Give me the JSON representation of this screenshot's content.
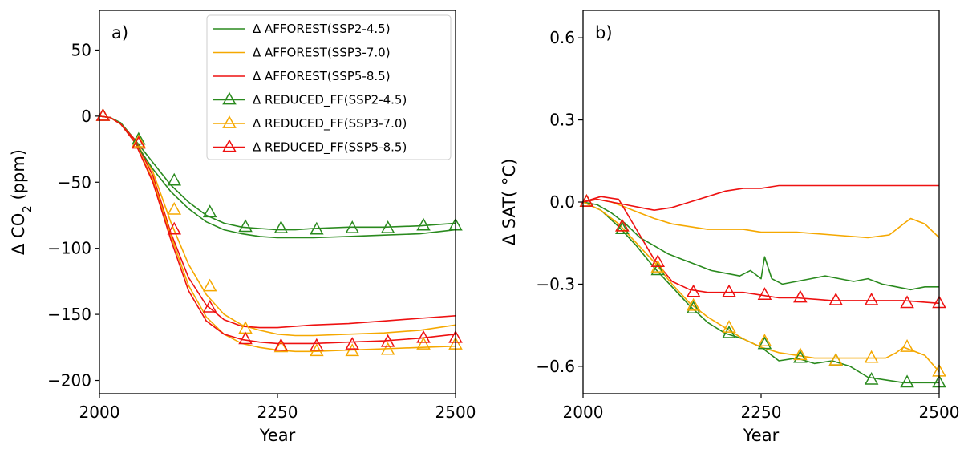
{
  "colors": {
    "SSP2-4.5": "#2a8a1e",
    "SSP3-7.0": "#f5a800",
    "SSP5-8.5": "#ee1111"
  },
  "legend": [
    {
      "label": "Δ AFFOREST(SSP2-4.5)",
      "scenario": "SSP2-4.5",
      "marker": false
    },
    {
      "label": "Δ AFFOREST(SSP3-7.0)",
      "scenario": "SSP3-7.0",
      "marker": false
    },
    {
      "label": "Δ AFFOREST(SSP5-8.5)",
      "scenario": "SSP5-8.5",
      "marker": false
    },
    {
      "label": "Δ REDUCED_FF(SSP2-4.5)",
      "scenario": "SSP2-4.5",
      "marker": true
    },
    {
      "label": "Δ REDUCED_FF(SSP3-7.0)",
      "scenario": "SSP3-7.0",
      "marker": true
    },
    {
      "label": "Δ REDUCED_FF(SSP5-8.5)",
      "scenario": "SSP5-8.5",
      "marker": true
    }
  ],
  "chart_data": [
    {
      "id": "a",
      "type": "line",
      "panel_label": "a)",
      "xlabel": "Year",
      "ylabel_parts": [
        "Δ CO",
        "2",
        " (ppm)"
      ],
      "xlim": [
        2000,
        2500
      ],
      "ylim": [
        -210,
        80
      ],
      "xticks": [
        2000,
        2250,
        2500
      ],
      "yticks": [
        -200,
        -150,
        -100,
        -50,
        0,
        50
      ],
      "ytick_labels": [
        "−200",
        "−150",
        "−100",
        "−50",
        "0",
        "50"
      ],
      "legend_position": "top-right",
      "grid": false,
      "series": [
        {
          "name": "Δ AFFOREST(SSP2-4.5)",
          "scenario": "SSP2-4.5",
          "marker": false,
          "x": [
            2000,
            2015,
            2030,
            2050,
            2075,
            2100,
            2125,
            2150,
            2175,
            2200,
            2225,
            2250,
            2275,
            2300,
            2350,
            2400,
            2450,
            2500
          ],
          "y": [
            0,
            -1,
            -5,
            -18,
            -35,
            -52,
            -65,
            -75,
            -81,
            -84,
            -85,
            -86,
            -86,
            -85,
            -84,
            -84,
            -83,
            -81
          ]
        },
        {
          "name": "Δ AFFOREST(SSP3-7.0)",
          "scenario": "SSP3-7.0",
          "marker": false,
          "x": [
            2000,
            2015,
            2030,
            2050,
            2075,
            2100,
            2125,
            2150,
            2175,
            2200,
            2225,
            2250,
            2275,
            2300,
            2350,
            2400,
            2450,
            2500
          ],
          "y": [
            0,
            -1,
            -6,
            -18,
            -42,
            -80,
            -112,
            -135,
            -150,
            -158,
            -162,
            -165,
            -166,
            -166,
            -165,
            -164,
            -162,
            -158
          ]
        },
        {
          "name": "Δ AFFOREST(SSP5-8.5)",
          "scenario": "SSP5-8.5",
          "marker": false,
          "x": [
            2000,
            2015,
            2030,
            2050,
            2075,
            2100,
            2125,
            2150,
            2175,
            2200,
            2225,
            2250,
            2275,
            2300,
            2350,
            2400,
            2450,
            2500
          ],
          "y": [
            0,
            -1,
            -6,
            -18,
            -45,
            -88,
            -122,
            -143,
            -154,
            -159,
            -160,
            -160,
            -159,
            -158,
            -157,
            -155,
            -153,
            -151
          ]
        },
        {
          "name": "Δ REDUCED_FF(SSP2-4.5)",
          "scenario": "SSP2-4.5",
          "marker": true,
          "x": [
            2000,
            2015,
            2030,
            2050,
            2075,
            2100,
            2125,
            2150,
            2175,
            2200,
            2225,
            2250,
            2275,
            2300,
            2350,
            2400,
            2450,
            2500
          ],
          "y": [
            0,
            -1,
            -6,
            -20,
            -40,
            -57,
            -70,
            -80,
            -86,
            -89,
            -91,
            -92,
            -92,
            -92,
            -91,
            -90,
            -89,
            -86
          ],
          "marker_x": [
            2005,
            2055,
            2105,
            2155,
            2205,
            2255,
            2305,
            2355,
            2405,
            2455,
            2500
          ],
          "marker_y": [
            0,
            -18,
            -49,
            -73,
            -84,
            -85,
            -86,
            -85,
            -85,
            -83,
            -83
          ]
        },
        {
          "name": "Δ REDUCED_FF(SSP3-7.0)",
          "scenario": "SSP3-7.0",
          "marker": true,
          "x": [
            2000,
            2015,
            2030,
            2050,
            2075,
            2100,
            2125,
            2150,
            2175,
            2200,
            2225,
            2250,
            2275,
            2300,
            2350,
            2400,
            2450,
            2500
          ],
          "y": [
            0,
            -1,
            -6,
            -20,
            -48,
            -90,
            -128,
            -152,
            -165,
            -172,
            -175,
            -177,
            -178,
            -178,
            -177,
            -176,
            -175,
            -174
          ],
          "marker_x": [
            2005,
            2055,
            2105,
            2155,
            2205,
            2255,
            2305,
            2355,
            2405,
            2455,
            2500
          ],
          "marker_y": [
            0,
            -20,
            -71,
            -129,
            -161,
            -175,
            -178,
            -178,
            -177,
            -173,
            -173
          ]
        },
        {
          "name": "Δ REDUCED_FF(SSP5-8.5)",
          "scenario": "SSP5-8.5",
          "marker": true,
          "x": [
            2000,
            2015,
            2030,
            2050,
            2075,
            2100,
            2125,
            2150,
            2175,
            2200,
            2225,
            2250,
            2275,
            2300,
            2350,
            2400,
            2450,
            2500
          ],
          "y": [
            0,
            -1,
            -6,
            -20,
            -50,
            -93,
            -132,
            -155,
            -165,
            -169,
            -171,
            -172,
            -172,
            -172,
            -171,
            -170,
            -168,
            -165
          ],
          "marker_x": [
            2005,
            2055,
            2105,
            2155,
            2205,
            2255,
            2305,
            2355,
            2405,
            2455,
            2500
          ],
          "marker_y": [
            0,
            -21,
            -86,
            -145,
            -169,
            -174,
            -174,
            -173,
            -171,
            -168,
            -168
          ]
        }
      ]
    },
    {
      "id": "b",
      "type": "line",
      "panel_label": "b)",
      "xlabel": "Year",
      "ylabel_parts": [
        "Δ SAT( °C)"
      ],
      "xlim": [
        2000,
        2500
      ],
      "ylim": [
        -0.7,
        0.7
      ],
      "xticks": [
        2000,
        2250,
        2500
      ],
      "yticks": [
        -0.6,
        -0.3,
        0.0,
        0.3,
        0.6
      ],
      "ytick_labels": [
        "−0.6",
        "−0.3",
        "0.0",
        "0.3",
        "0.6"
      ],
      "grid": false,
      "series": [
        {
          "name": "Δ AFFOREST(SSP2-4.5)",
          "scenario": "SSP2-4.5",
          "marker": false,
          "x": [
            2000,
            2020,
            2040,
            2060,
            2080,
            2100,
            2120,
            2140,
            2160,
            2180,
            2200,
            2220,
            2235,
            2250,
            2255,
            2265,
            2280,
            2300,
            2320,
            2340,
            2360,
            2380,
            2400,
            2420,
            2440,
            2460,
            2480,
            2500
          ],
          "y": [
            0.0,
            -0.01,
            -0.04,
            -0.08,
            -0.13,
            -0.16,
            -0.19,
            -0.21,
            -0.23,
            -0.25,
            -0.26,
            -0.27,
            -0.25,
            -0.28,
            -0.2,
            -0.28,
            -0.3,
            -0.29,
            -0.28,
            -0.27,
            -0.28,
            -0.29,
            -0.28,
            -0.3,
            -0.31,
            -0.32,
            -0.31,
            -0.31
          ]
        },
        {
          "name": "Δ AFFOREST(SSP3-7.0)",
          "scenario": "SSP3-7.0",
          "marker": false,
          "x": [
            2000,
            2020,
            2040,
            2060,
            2080,
            2100,
            2125,
            2150,
            2175,
            2200,
            2225,
            2250,
            2275,
            2300,
            2350,
            2400,
            2430,
            2450,
            2460,
            2480,
            2500
          ],
          "y": [
            0.0,
            0.01,
            0.0,
            -0.02,
            -0.04,
            -0.06,
            -0.08,
            -0.09,
            -0.1,
            -0.1,
            -0.1,
            -0.11,
            -0.11,
            -0.11,
            -0.12,
            -0.13,
            -0.12,
            -0.08,
            -0.06,
            -0.08,
            -0.13
          ]
        },
        {
          "name": "Δ AFFOREST(SSP5-8.5)",
          "scenario": "SSP5-8.5",
          "marker": false,
          "x": [
            2000,
            2020,
            2040,
            2060,
            2080,
            2100,
            2125,
            2150,
            2175,
            2200,
            2225,
            2250,
            2275,
            2300,
            2350,
            2400,
            2450,
            2500
          ],
          "y": [
            0.0,
            0.01,
            0.0,
            -0.01,
            -0.02,
            -0.03,
            -0.02,
            0.0,
            0.02,
            0.04,
            0.05,
            0.05,
            0.06,
            0.06,
            0.06,
            0.06,
            0.06,
            0.06
          ]
        },
        {
          "name": "Δ REDUCED_FF(SSP2-4.5)",
          "scenario": "SSP2-4.5",
          "marker": true,
          "x": [
            2000,
            2025,
            2050,
            2075,
            2100,
            2125,
            2150,
            2175,
            2200,
            2225,
            2250,
            2275,
            2300,
            2325,
            2350,
            2375,
            2400,
            2425,
            2450,
            2475,
            2500
          ],
          "y": [
            0.0,
            -0.03,
            -0.09,
            -0.16,
            -0.24,
            -0.31,
            -0.38,
            -0.44,
            -0.48,
            -0.5,
            -0.53,
            -0.58,
            -0.57,
            -0.59,
            -0.58,
            -0.6,
            -0.64,
            -0.65,
            -0.66,
            -0.66,
            -0.66
          ],
          "marker_x": [
            2005,
            2055,
            2105,
            2155,
            2205,
            2255,
            2305,
            2355,
            2405,
            2455,
            2500
          ],
          "marker_y": [
            0.0,
            -0.1,
            -0.25,
            -0.39,
            -0.48,
            -0.52,
            -0.57,
            -0.58,
            -0.65,
            -0.66,
            -0.66
          ]
        },
        {
          "name": "Δ REDUCED_FF(SSP3-7.0)",
          "scenario": "SSP3-7.0",
          "marker": true,
          "x": [
            2000,
            2025,
            2050,
            2075,
            2100,
            2125,
            2150,
            2175,
            2200,
            2225,
            2250,
            2275,
            2300,
            2325,
            2350,
            2375,
            2400,
            2425,
            2440,
            2450,
            2460,
            2480,
            2500
          ],
          "y": [
            0.0,
            -0.03,
            -0.08,
            -0.15,
            -0.22,
            -0.3,
            -0.37,
            -0.42,
            -0.46,
            -0.5,
            -0.53,
            -0.55,
            -0.56,
            -0.57,
            -0.57,
            -0.57,
            -0.57,
            -0.57,
            -0.55,
            -0.53,
            -0.54,
            -0.56,
            -0.62
          ],
          "marker_x": [
            2005,
            2055,
            2105,
            2155,
            2205,
            2255,
            2305,
            2355,
            2405,
            2455,
            2500
          ],
          "marker_y": [
            0.0,
            -0.09,
            -0.24,
            -0.38,
            -0.46,
            -0.51,
            -0.56,
            -0.58,
            -0.57,
            -0.53,
            -0.62
          ]
        },
        {
          "name": "Δ REDUCED_FF(SSP5-8.5)",
          "scenario": "SSP5-8.5",
          "marker": true,
          "x": [
            2000,
            2025,
            2050,
            2075,
            2100,
            2125,
            2150,
            2175,
            2200,
            2225,
            2250,
            2275,
            2300,
            2350,
            2400,
            2450,
            2500
          ],
          "y": [
            0.0,
            0.02,
            0.01,
            -0.1,
            -0.21,
            -0.29,
            -0.32,
            -0.33,
            -0.33,
            -0.33,
            -0.34,
            -0.35,
            -0.35,
            -0.36,
            -0.36,
            -0.36,
            -0.37
          ],
          "marker_x": [
            2005,
            2055,
            2105,
            2155,
            2205,
            2255,
            2305,
            2355,
            2405,
            2455,
            2500
          ],
          "marker_y": [
            0.0,
            -0.09,
            -0.22,
            -0.33,
            -0.33,
            -0.34,
            -0.35,
            -0.36,
            -0.36,
            -0.37,
            -0.37
          ]
        }
      ]
    }
  ]
}
